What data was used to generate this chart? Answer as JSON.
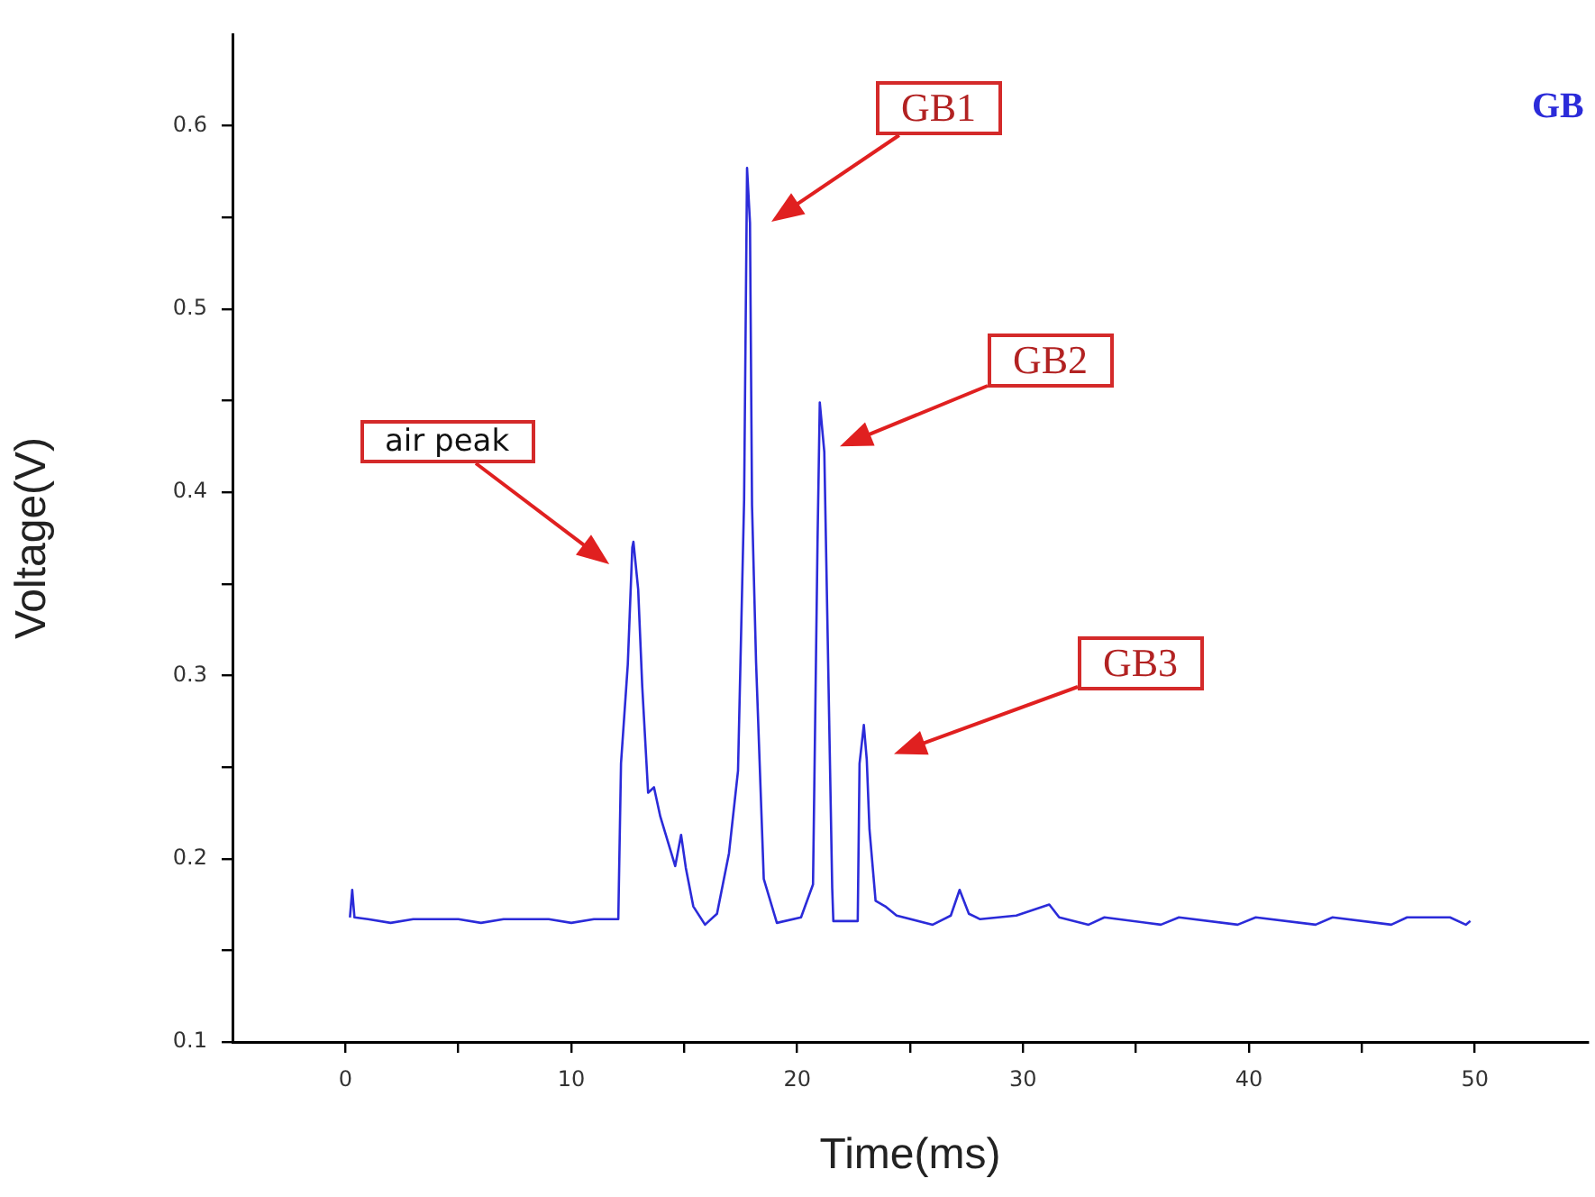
{
  "chart_data": {
    "type": "line",
    "xlabel": "Time(ms)",
    "ylabel": "Voltage(V)",
    "xlim": [
      -5,
      55
    ],
    "ylim": [
      0.1,
      0.65
    ],
    "xticks": [
      0,
      {
        "value": 5,
        "label": null
      },
      10,
      {
        "value": 15,
        "label": null
      },
      20,
      {
        "value": 25,
        "label": null
      },
      30,
      {
        "value": 35,
        "label": null
      },
      40,
      {
        "value": 45,
        "label": null
      },
      50
    ],
    "yticks": [
      0.1,
      {
        "value": 0.15,
        "label": null
      },
      0.2,
      {
        "value": 0.25,
        "label": null
      },
      0.3,
      {
        "value": 0.35,
        "label": null
      },
      0.4,
      {
        "value": 0.45,
        "label": null
      },
      0.5,
      {
        "value": 0.55,
        "label": null
      },
      0.6
    ],
    "grid": false,
    "marker": "none",
    "line_style": "solid",
    "series": [
      {
        "name": "GB",
        "color": "#2b2bd9",
        "x": [
          0.2,
          0.3,
          0.4,
          1,
          2,
          3,
          5,
          6,
          7,
          9,
          10,
          11,
          12.08,
          12.2,
          12.5,
          12.7,
          12.75,
          12.96,
          13.14,
          13.4,
          13.66,
          13.94,
          14.6,
          14.86,
          15.07,
          15.4,
          15.92,
          16.45,
          16.98,
          17.38,
          17.65,
          17.78,
          17.91,
          18.0,
          18.18,
          18.52,
          19.1,
          20.17,
          20.7,
          20.9,
          21.0,
          21.2,
          21.36,
          21.55,
          21.6,
          22.68,
          22.76,
          22.95,
          23.08,
          23.2,
          23.47,
          23.9,
          24.4,
          26.0,
          26.8,
          27.19,
          27.6,
          28.1,
          29.7,
          31.16,
          31.6,
          32.9,
          33.6,
          36.1,
          36.9,
          39.5,
          40.3,
          42.95,
          43.7,
          46.3,
          47.0,
          48.9,
          49.6,
          49.8
        ],
        "values": [
          0.168,
          0.183,
          0.168,
          0.167,
          0.165,
          0.167,
          0.167,
          0.165,
          0.167,
          0.167,
          0.165,
          0.167,
          0.167,
          0.252,
          0.306,
          0.37,
          0.373,
          0.347,
          0.294,
          0.236,
          0.239,
          0.223,
          0.196,
          0.213,
          0.195,
          0.174,
          0.164,
          0.17,
          0.203,
          0.248,
          0.396,
          0.577,
          0.547,
          0.393,
          0.307,
          0.189,
          0.165,
          0.168,
          0.186,
          0.373,
          0.449,
          0.422,
          0.314,
          0.184,
          0.166,
          0.166,
          0.252,
          0.273,
          0.254,
          0.216,
          0.177,
          0.174,
          0.169,
          0.164,
          0.169,
          0.183,
          0.17,
          0.167,
          0.169,
          0.175,
          0.168,
          0.164,
          0.168,
          0.164,
          0.168,
          0.164,
          0.168,
          0.164,
          0.168,
          0.164,
          0.168,
          0.168,
          0.164,
          0.166
        ]
      }
    ],
    "annotations": [
      "air peak",
      "GB1",
      "GB2",
      "GB3"
    ]
  }
}
